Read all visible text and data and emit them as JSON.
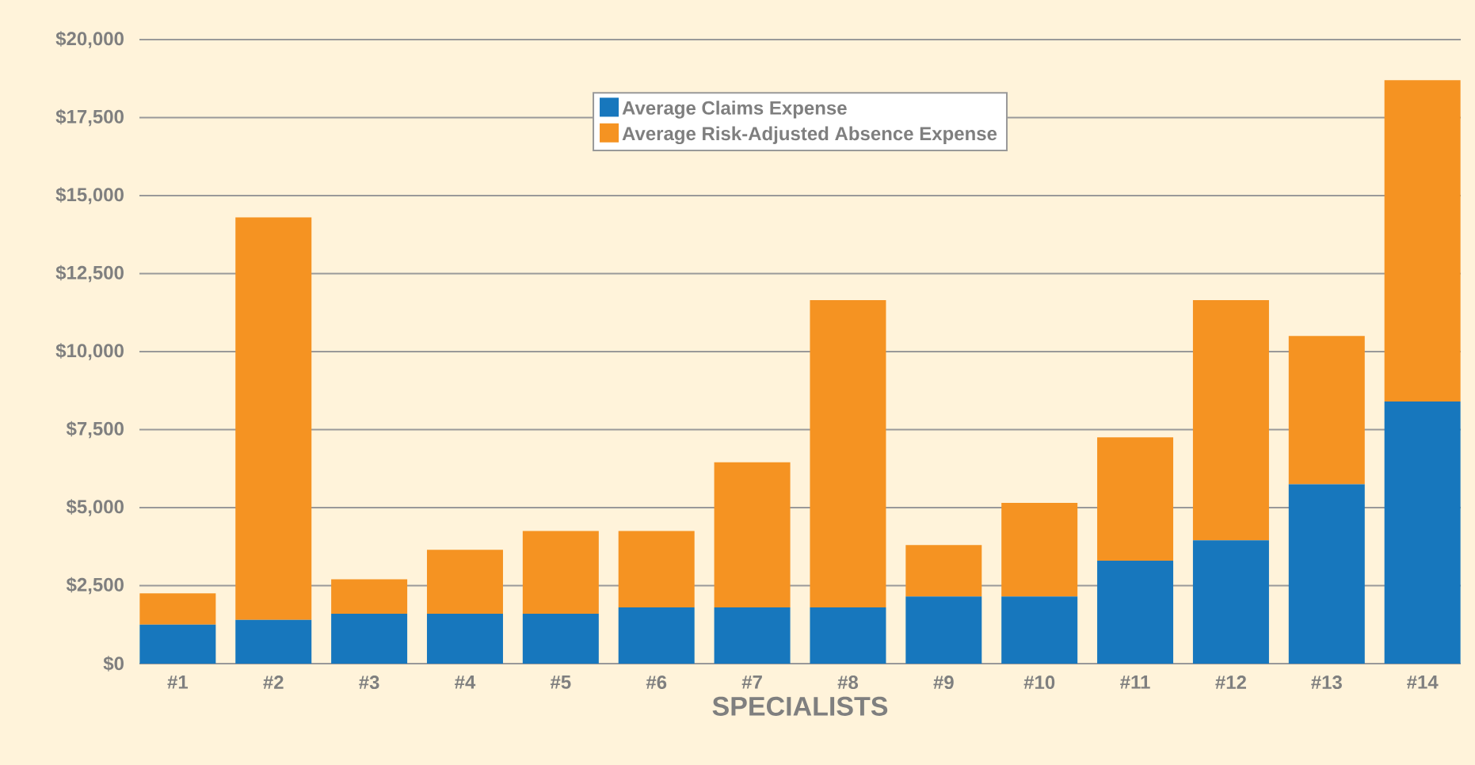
{
  "chart_data": {
    "type": "bar",
    "stacked": true,
    "xlabel": "SPECIALISTS",
    "categories": [
      "#1",
      "#2",
      "#3",
      "#4",
      "#5",
      "#6",
      "#7",
      "#8",
      "#9",
      "#10",
      "#11",
      "#12",
      "#13",
      "#14"
    ],
    "series": [
      {
        "name": "Average Claims Expense",
        "color": "#1777bd",
        "values": [
          1250,
          1400,
          1600,
          1600,
          1600,
          1800,
          1800,
          1800,
          2150,
          2150,
          3300,
          3950,
          5750,
          8400
        ]
      },
      {
        "name": "Average Risk-Adjusted Absence Expense",
        "color": "#f59322",
        "values": [
          1000,
          12900,
          1100,
          2050,
          2650,
          2450,
          4650,
          9850,
          1650,
          3000,
          3950,
          7700,
          4750,
          10300
        ]
      }
    ],
    "ylim": [
      0,
      20000
    ],
    "yticks": [
      {
        "value": 0,
        "label": "$0"
      },
      {
        "value": 2500,
        "label": "$2,500"
      },
      {
        "value": 5000,
        "label": "$5,000"
      },
      {
        "value": 7500,
        "label": "$7,500"
      },
      {
        "value": 10000,
        "label": "$10,000"
      },
      {
        "value": 12500,
        "label": "$12,500"
      },
      {
        "value": 15000,
        "label": "$15,000"
      },
      {
        "value": 17500,
        "label": "$17,500"
      },
      {
        "value": 20000,
        "label": "$20,000"
      }
    ],
    "grid": "y",
    "legend": "top"
  }
}
